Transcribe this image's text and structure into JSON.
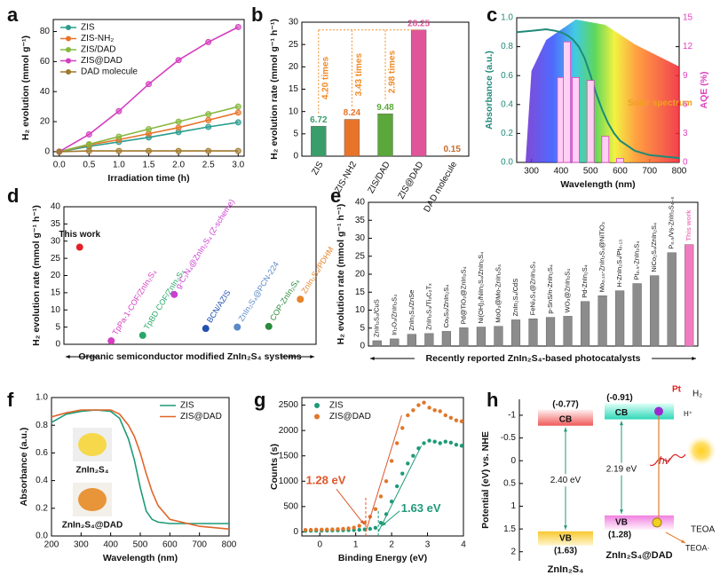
{
  "chart_data": [
    {
      "type": "line",
      "panel": "a",
      "x_label": "Irradiation time (h)",
      "y_label": "H₂ evolution (mmol g⁻¹)",
      "x": [
        0,
        0.5,
        1,
        1.5,
        2,
        2.5,
        3
      ],
      "series": [
        {
          "name": "ZIS",
          "color": "#2a9d8f",
          "values": [
            0,
            3.5,
            6.5,
            9.5,
            13,
            16.5,
            19.5
          ]
        },
        {
          "name": "ZIS-NH₂",
          "color": "#e8742a",
          "values": [
            0,
            4.5,
            8,
            12,
            16,
            21,
            26
          ]
        },
        {
          "name": "ZIS/DAD",
          "color": "#86b83f",
          "values": [
            0,
            5,
            10,
            15,
            20,
            25,
            30
          ]
        },
        {
          "name": "ZIS@DAD",
          "color": "#d43fc0",
          "values": [
            0,
            11.5,
            27,
            45,
            61,
            73,
            83
          ]
        },
        {
          "name": "DAD molecule",
          "color": "#a0782a",
          "values": [
            0,
            0.5,
            0.5,
            0.5,
            0.5,
            0.5,
            0.5
          ]
        }
      ],
      "markers": true,
      "legend": "upper left",
      "xlim": [
        -0.1,
        3.1
      ],
      "xticks": [
        {
          "value": 0,
          "label": "0.0"
        },
        0.5,
        {
          "value": 1,
          "label": "1.0"
        },
        1.5,
        {
          "value": 2,
          "label": "2.0"
        },
        2.5,
        {
          "value": 3,
          "label": "3.0"
        }
      ],
      "ylim": [
        -3,
        88
      ],
      "yticks": [
        0,
        20,
        40,
        60,
        80
      ]
    },
    {
      "type": "bar",
      "panel": "b",
      "y_label": "H₂ evolution rate (mmol g⁻¹ h⁻¹)",
      "categories": [
        "ZIS",
        "ZIS-NH2",
        "ZIS/DAD",
        "ZIS@DAD",
        "DAD molecule"
      ],
      "values": [
        6.72,
        8.24,
        9.48,
        28.25,
        0.15
      ],
      "show_values": true,
      "colors": [
        "#3a9e6a",
        "#e8742a",
        "#5aa83a",
        "#e0559a",
        "#c86a2a"
      ],
      "fold_labels": [
        "4.20 times",
        "3.43 times",
        "2.98 times"
      ],
      "fold_color": "#f08a24",
      "ylim": [
        0,
        30
      ],
      "yticks": [
        0,
        5,
        10,
        15,
        20,
        25,
        30
      ]
    },
    {
      "type": "combo",
      "panel": "c",
      "x_label": "Wavelength (nm)",
      "y_label": "Absorbance (a.u.)",
      "y2_label": "AQE (%)",
      "y_color": "#1f8a78",
      "y2_color": "#e040c0",
      "annotation": "Solar spectrum",
      "annotation_color": "#f0a020",
      "series": [
        {
          "color": "#1f8a78",
          "x": [
            250,
            300,
            350,
            380,
            400,
            420,
            440,
            460,
            480,
            500,
            520,
            540,
            560,
            580,
            600,
            650,
            700,
            750,
            800
          ],
          "values": [
            0.9,
            0.91,
            0.92,
            0.91,
            0.9,
            0.88,
            0.85,
            0.8,
            0.72,
            0.6,
            0.47,
            0.36,
            0.27,
            0.2,
            0.15,
            0.08,
            0.05,
            0.04,
            0.03
          ]
        },
        {
          "color": "#e040c0",
          "axis": "y2",
          "kind": "bar",
          "x": [
            400,
            420,
            450,
            500,
            550,
            600
          ],
          "values": [
            8.8,
            12.5,
            8.8,
            8.5,
            2.7,
            0.4
          ]
        }
      ],
      "xlim": [
        250,
        800
      ],
      "xticks": [
        300,
        400,
        500,
        600,
        700,
        800
      ],
      "ylim": [
        0,
        1
      ],
      "yticks": [
        {
          "value": 0,
          "label": "0.0"
        },
        0.2,
        0.4,
        0.6,
        0.8,
        {
          "value": 1,
          "label": "1.0"
        }
      ],
      "y2lim": [
        0,
        15
      ],
      "y2ticks": [
        0,
        3,
        6,
        9,
        12,
        15
      ]
    },
    {
      "type": "dot",
      "panel": "d",
      "x_label": "Organic semiconductor modified ZnIn₂S₄ systems",
      "y_label": "H₂ evolution rate (mmol g⁻¹ h⁻¹)",
      "categories": [
        "This work",
        "TpPa-1-COF/ZnIn₂S₄",
        "TpBD COF/ZnIn₂S₄",
        "g-C₃N₄@ZnIn₂S₄ (Z-scheme)",
        "BCN/AZIS",
        "ZnIn₂S₄@PCN-224",
        "COP-ZnIn₂S₄",
        "ZnIn₂S₄/PDHM"
      ],
      "values": [
        28.25,
        1,
        2.6,
        14.5,
        4.6,
        5,
        5.2,
        13.1
      ],
      "colors": [
        "#e3202a",
        "#d43fc0",
        "#2aa86a",
        "#c83fd0",
        "#2050b0",
        "#5a8ac8",
        "#2a8a3a",
        "#e8842a"
      ],
      "ylim": [
        0,
        40
      ],
      "yticks": [
        0,
        5,
        10,
        15,
        20,
        25,
        30,
        35,
        40
      ]
    },
    {
      "type": "bar",
      "panel": "e",
      "x_label": "Recently reported ZnIn₂S₄-based photocatalysts",
      "y_label": "H₂ evolution rate (mmol g⁻¹ h⁻¹)",
      "categories": [
        "ZnIn₂S₄/CuS",
        "In₂O₃/ZnIn₂S₄",
        "ZnIn₂S₄/ZnSe",
        "ZnIn₂S₄/Ti₃C₂Tₓ",
        "Co₉S₈/ZnIn₂S₄",
        "Pd@TiO₂@ZnIn₂S₄",
        "Ni(OH)₂/NiIn₂S₄/ZnIn₂S₄",
        "MoO₃@Mo-ZnIn₂S₄",
        "ZnIn₂S₄/CdS",
        "FeNi₂S₄@ZnIn₂S₄",
        "p-SnS/n-ZnIn₂S₄",
        "WO₃@ZnIn₂S₄",
        "Pd-ZnIn₂S₄",
        "Mo₀.₁₅-ZnIn₂S₄@NiTiO₃",
        "H-ZnIn₂S₄/Pt₀.₁₃",
        "Pt₀.₅-ZnIn₂S₄",
        "NiCo₂S₄/ZnIn₂S₄",
        "P₀.₅/Vs-ZnIn₂S₄₋ₓ",
        "This work"
      ],
      "values": [
        1.5,
        2,
        3.3,
        3.5,
        4.1,
        5.1,
        5.3,
        5.5,
        7.3,
        7.6,
        8,
        8.3,
        12.4,
        14,
        15.4,
        17.4,
        19.6,
        26,
        28.25
      ],
      "color": "#8c8c8c",
      "highlight_color": "#f07cc0",
      "ylim": [
        0,
        40
      ],
      "yticks": [
        0,
        5,
        10,
        15,
        20,
        25,
        30,
        35,
        40
      ]
    },
    {
      "type": "line",
      "panel": "f",
      "x_label": "Wavelength (nm)",
      "y_label": "Absorbance (a.u.)",
      "x": [
        200,
        250,
        300,
        350,
        400,
        430,
        460,
        480,
        500,
        520,
        540,
        560,
        600,
        700,
        800
      ],
      "series": [
        {
          "name": "ZIS",
          "color": "#1f9a78",
          "values": [
            0.82,
            0.88,
            0.9,
            0.91,
            0.9,
            0.85,
            0.7,
            0.55,
            0.35,
            0.18,
            0.12,
            0.1,
            0.09,
            0.09,
            0.09
          ]
        },
        {
          "name": "ZIS@DAD",
          "color": "#e0662a",
          "values": [
            0.86,
            0.89,
            0.91,
            0.91,
            0.91,
            0.88,
            0.8,
            0.72,
            0.6,
            0.45,
            0.32,
            0.22,
            0.12,
            0.07,
            0.05
          ]
        }
      ],
      "legend": "upper right",
      "image_captions": [
        "ZnIn₂S₄",
        "ZnIn₂S₄@DAD"
      ],
      "xlim": [
        200,
        800
      ],
      "xticks": [
        200,
        300,
        400,
        500,
        600,
        700,
        800
      ],
      "ylim": [
        0,
        1
      ],
      "yticks": [
        {
          "value": 0,
          "label": "0.0"
        },
        0.2,
        0.4,
        0.6,
        0.8,
        {
          "value": 1,
          "label": "1.0"
        }
      ]
    },
    {
      "type": "scatter",
      "panel": "g",
      "x_label": "Binding Energy (eV)",
      "y_label": "Counts (s)",
      "x": [
        -0.4,
        -0.25,
        -0.1,
        0.05,
        0.2,
        0.35,
        0.5,
        0.65,
        0.8,
        0.95,
        1.1,
        1.25,
        1.4,
        1.55,
        1.7,
        1.85,
        2.0,
        2.15,
        2.3,
        2.45,
        2.6,
        2.75,
        2.9,
        3.05,
        3.2,
        3.35,
        3.5,
        3.65,
        3.8,
        3.95
      ],
      "series": [
        {
          "name": "ZIS",
          "color": "#1f9a78",
          "values": [
            20,
            22,
            24,
            25,
            26,
            28,
            30,
            32,
            35,
            38,
            42,
            50,
            60,
            80,
            180,
            350,
            600,
            900,
            1150,
            1350,
            1500,
            1650,
            1750,
            1800,
            1780,
            1750,
            1780,
            1760,
            1720,
            1700
          ]
        },
        {
          "name": "ZIS@DAD",
          "color": "#e0762a",
          "values": [
            40,
            42,
            45,
            45,
            48,
            50,
            55,
            60,
            70,
            85,
            120,
            180,
            300,
            450,
            700,
            1000,
            1400,
            1750,
            2050,
            2300,
            2400,
            2500,
            2550,
            2450,
            2400,
            2380,
            2300,
            2250,
            2200,
            2180
          ]
        }
      ],
      "legend": "upper left",
      "markers": [
        {
          "value": 1.28,
          "label": "1.28 eV",
          "color": "#e0562a"
        },
        {
          "value": 1.63,
          "label": "1.63 eV",
          "color": "#1f9a78"
        }
      ],
      "xlim": [
        -0.5,
        4
      ],
      "xticks": [
        0,
        1,
        2,
        3,
        4
      ],
      "ylim": [
        -80,
        2650
      ],
      "yticks": [
        0,
        500,
        1000,
        1500,
        2000,
        2500
      ]
    },
    {
      "type": "band",
      "panel": "h",
      "y_label": "Potential (eV) vs. NHE",
      "y_inverted": true,
      "cb_text": "CB",
      "vb_text": "VB",
      "materials": [
        {
          "name": "ZnIn₂S₄",
          "cb": -0.77,
          "cb_label": "(-0.77)",
          "vb": 1.63,
          "vb_label": "(1.63)",
          "gap_label": "2.40 eV"
        },
        {
          "name": "ZnIn₂S₄@DAD",
          "cb": -0.91,
          "cb_label": "(-0.91)",
          "vb": 1.28,
          "vb_label": "(1.28)",
          "gap_label": "2.19 eV"
        }
      ],
      "annotations": [
        "Pt",
        "H₂",
        "H⁺",
        "hν",
        "TEOA",
        "TEOA·"
      ],
      "ylim": [
        -1.35,
        2.2
      ],
      "yticks": [
        -1,
        -0.5,
        0,
        0.5,
        1,
        1.5,
        2
      ]
    }
  ]
}
